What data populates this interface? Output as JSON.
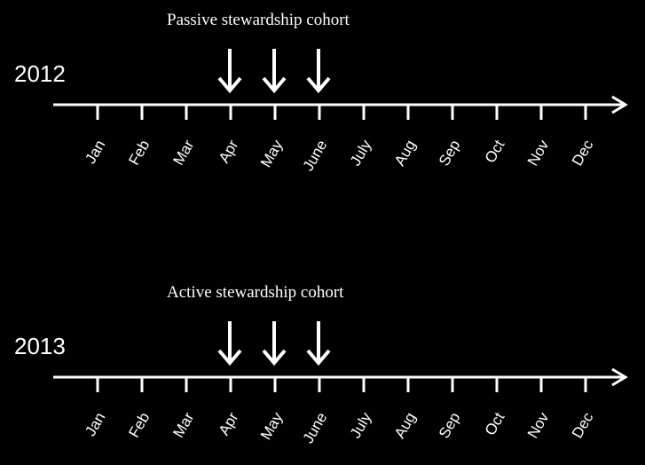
{
  "timelines": [
    {
      "cohort": "Passive stewardship cohort",
      "year": "2012",
      "months": [
        "Jan",
        "Feb",
        "Mar",
        "Apr",
        "May",
        "June",
        "July",
        "Aug",
        "Sep",
        "Oct",
        "Nov",
        "Dec"
      ]
    },
    {
      "cohort": "Active stewardship cohort",
      "year": "2013",
      "months": [
        "Jan",
        "Feb",
        "Mar",
        "Apr",
        "May",
        "June",
        "July",
        "Aug",
        "Sep",
        "Oct",
        "Nov",
        "Dec"
      ]
    }
  ]
}
